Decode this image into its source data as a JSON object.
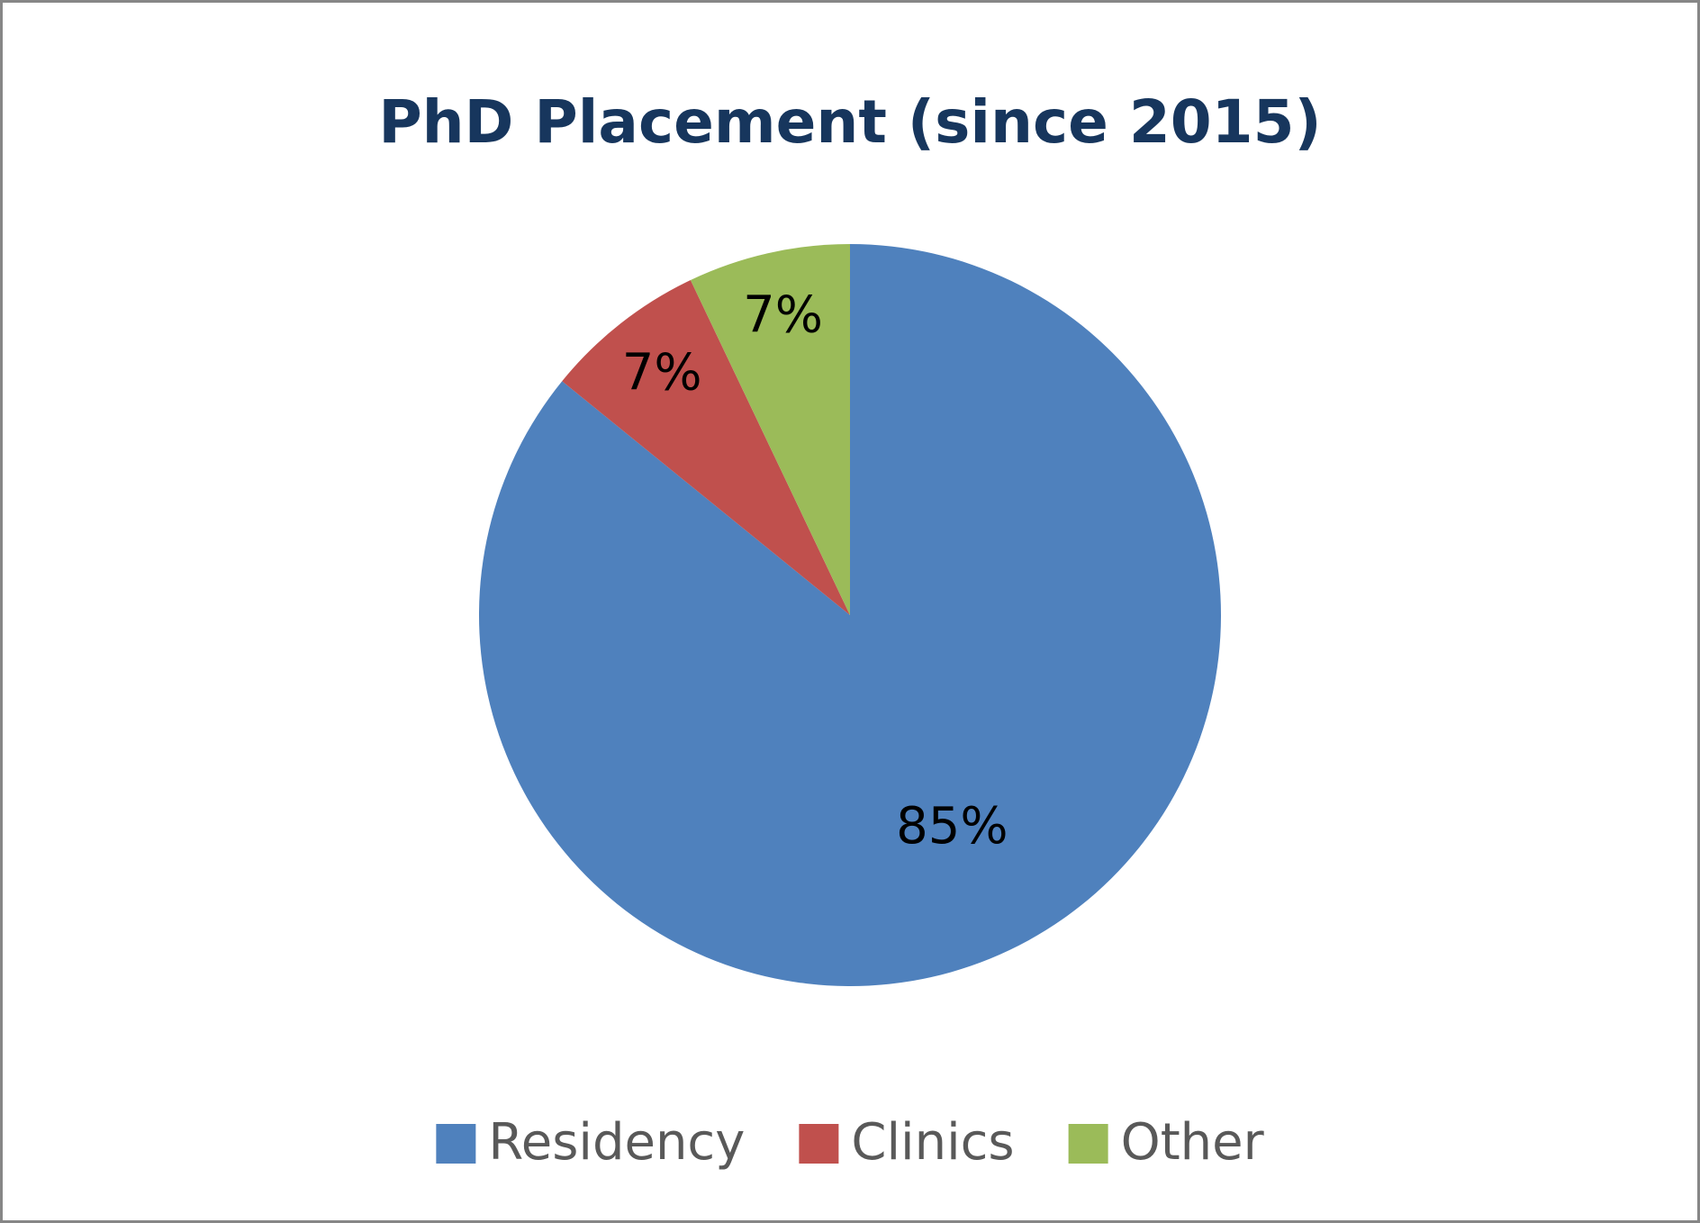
{
  "chart_data": {
    "type": "pie",
    "title": "PhD Placement (since 2015)",
    "categories": [
      "Residency",
      "Clinics",
      "Other"
    ],
    "values": [
      85,
      7,
      7
    ],
    "value_labels": [
      "85%",
      "7%",
      "7%"
    ],
    "colors": [
      "#4f81bd",
      "#c0504d",
      "#9bbb59"
    ],
    "legend": "bottom"
  }
}
